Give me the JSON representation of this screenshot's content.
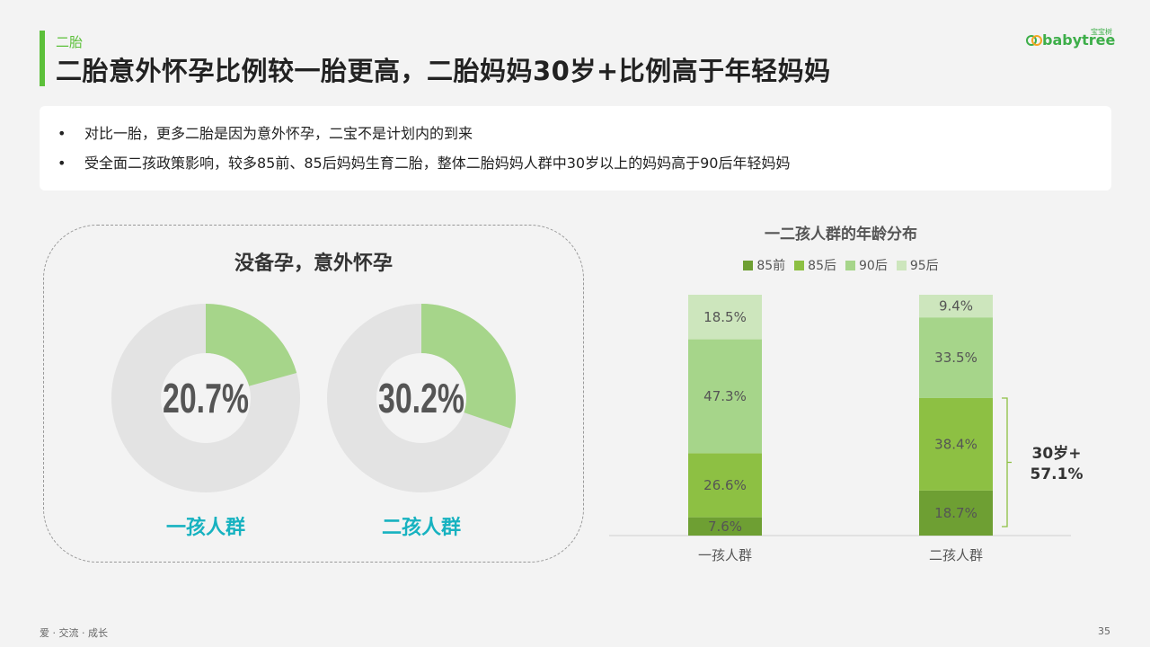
{
  "header": {
    "subtitle": "二胎",
    "title": "二胎意外怀孕比例较一胎更高，二胎妈妈30岁+比例高于年轻妈妈",
    "logo": "babytree",
    "logo_sup": "宝宝树"
  },
  "bullets": [
    "对比一胎，更多二胎是因为意外怀孕，二宝不是计划内的到来",
    "受全面二孩政策影响，较多85前、85后妈妈生育二胎，整体二胎妈妈人群中30岁以上的妈妈高于90后年轻妈妈"
  ],
  "colors": {
    "accent": "#5cc03a",
    "teal": "#17b2c0",
    "donut_bg": "#e3e3e3",
    "donut_fg": "#a6d58a",
    "s85pre": "#6e9f33",
    "s85": "#8dc043",
    "s90": "#a6d58a",
    "s95": "#cde6bd"
  },
  "chart_data": [
    {
      "type": "pie",
      "title": "没备孕，意外怀孕",
      "categories": [
        "一孩人群",
        "二孩人群"
      ],
      "values": [
        20.7,
        30.2
      ],
      "labels": [
        "20.7%",
        "30.2%"
      ]
    },
    {
      "type": "bar",
      "stacked": true,
      "title": "一二孩人群的年龄分布",
      "categories": [
        "一孩人群",
        "二孩人群"
      ],
      "series": [
        {
          "name": "85前",
          "values": [
            7.6,
            18.7
          ],
          "labels": [
            "7.6%",
            "18.7%"
          ]
        },
        {
          "name": "85后",
          "values": [
            26.6,
            38.4
          ],
          "labels": [
            "26.6%",
            "38.4%"
          ]
        },
        {
          "name": "90后",
          "values": [
            47.3,
            33.5
          ],
          "labels": [
            "47.3%",
            "33.5%"
          ]
        },
        {
          "name": "95后",
          "values": [
            18.5,
            9.4
          ],
          "labels": [
            "18.5%",
            "9.4%"
          ]
        }
      ],
      "ylim": [
        0,
        100
      ],
      "legend": "top",
      "annotation": {
        "line1": "30岁+",
        "line2": "57.1%"
      }
    }
  ],
  "footer": {
    "left": "爱 · 交流 · 成长",
    "page": "35"
  }
}
